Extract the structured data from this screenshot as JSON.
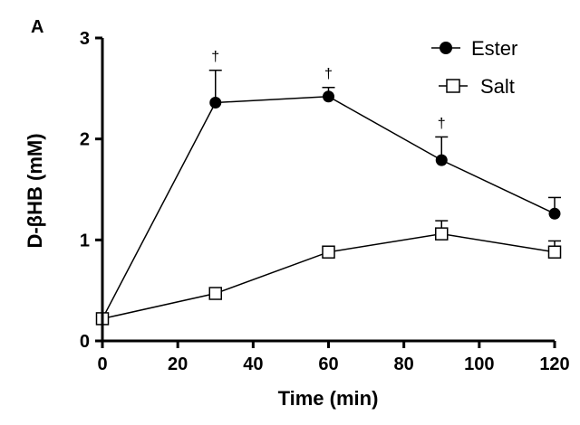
{
  "panel_label": "A",
  "chart_data": {
    "type": "line",
    "xlabel": "Time (min)",
    "ylabel": "D-βHB (mM)",
    "xlim": [
      0,
      120
    ],
    "ylim": [
      0,
      3
    ],
    "x_ticks": [
      0,
      20,
      40,
      60,
      80,
      100,
      120
    ],
    "y_ticks": [
      0,
      1,
      2,
      3
    ],
    "grid": false,
    "legend_position": "top-right",
    "x": [
      0,
      30,
      60,
      90,
      120
    ],
    "series": [
      {
        "name": "Ester",
        "marker": "filled-circle",
        "values": [
          0.22,
          2.36,
          2.42,
          1.79,
          1.26
        ],
        "error": [
          0,
          0.32,
          0.09,
          0.23,
          0.16
        ],
        "significance": [
          "",
          "†",
          "†",
          "†",
          ""
        ]
      },
      {
        "name": "Salt",
        "marker": "open-square",
        "values": [
          0.22,
          0.47,
          0.88,
          1.06,
          0.88
        ],
        "error": [
          0,
          0.04,
          0.04,
          0.13,
          0.11
        ],
        "significance": [
          "",
          "",
          "",
          "",
          ""
        ]
      }
    ]
  }
}
